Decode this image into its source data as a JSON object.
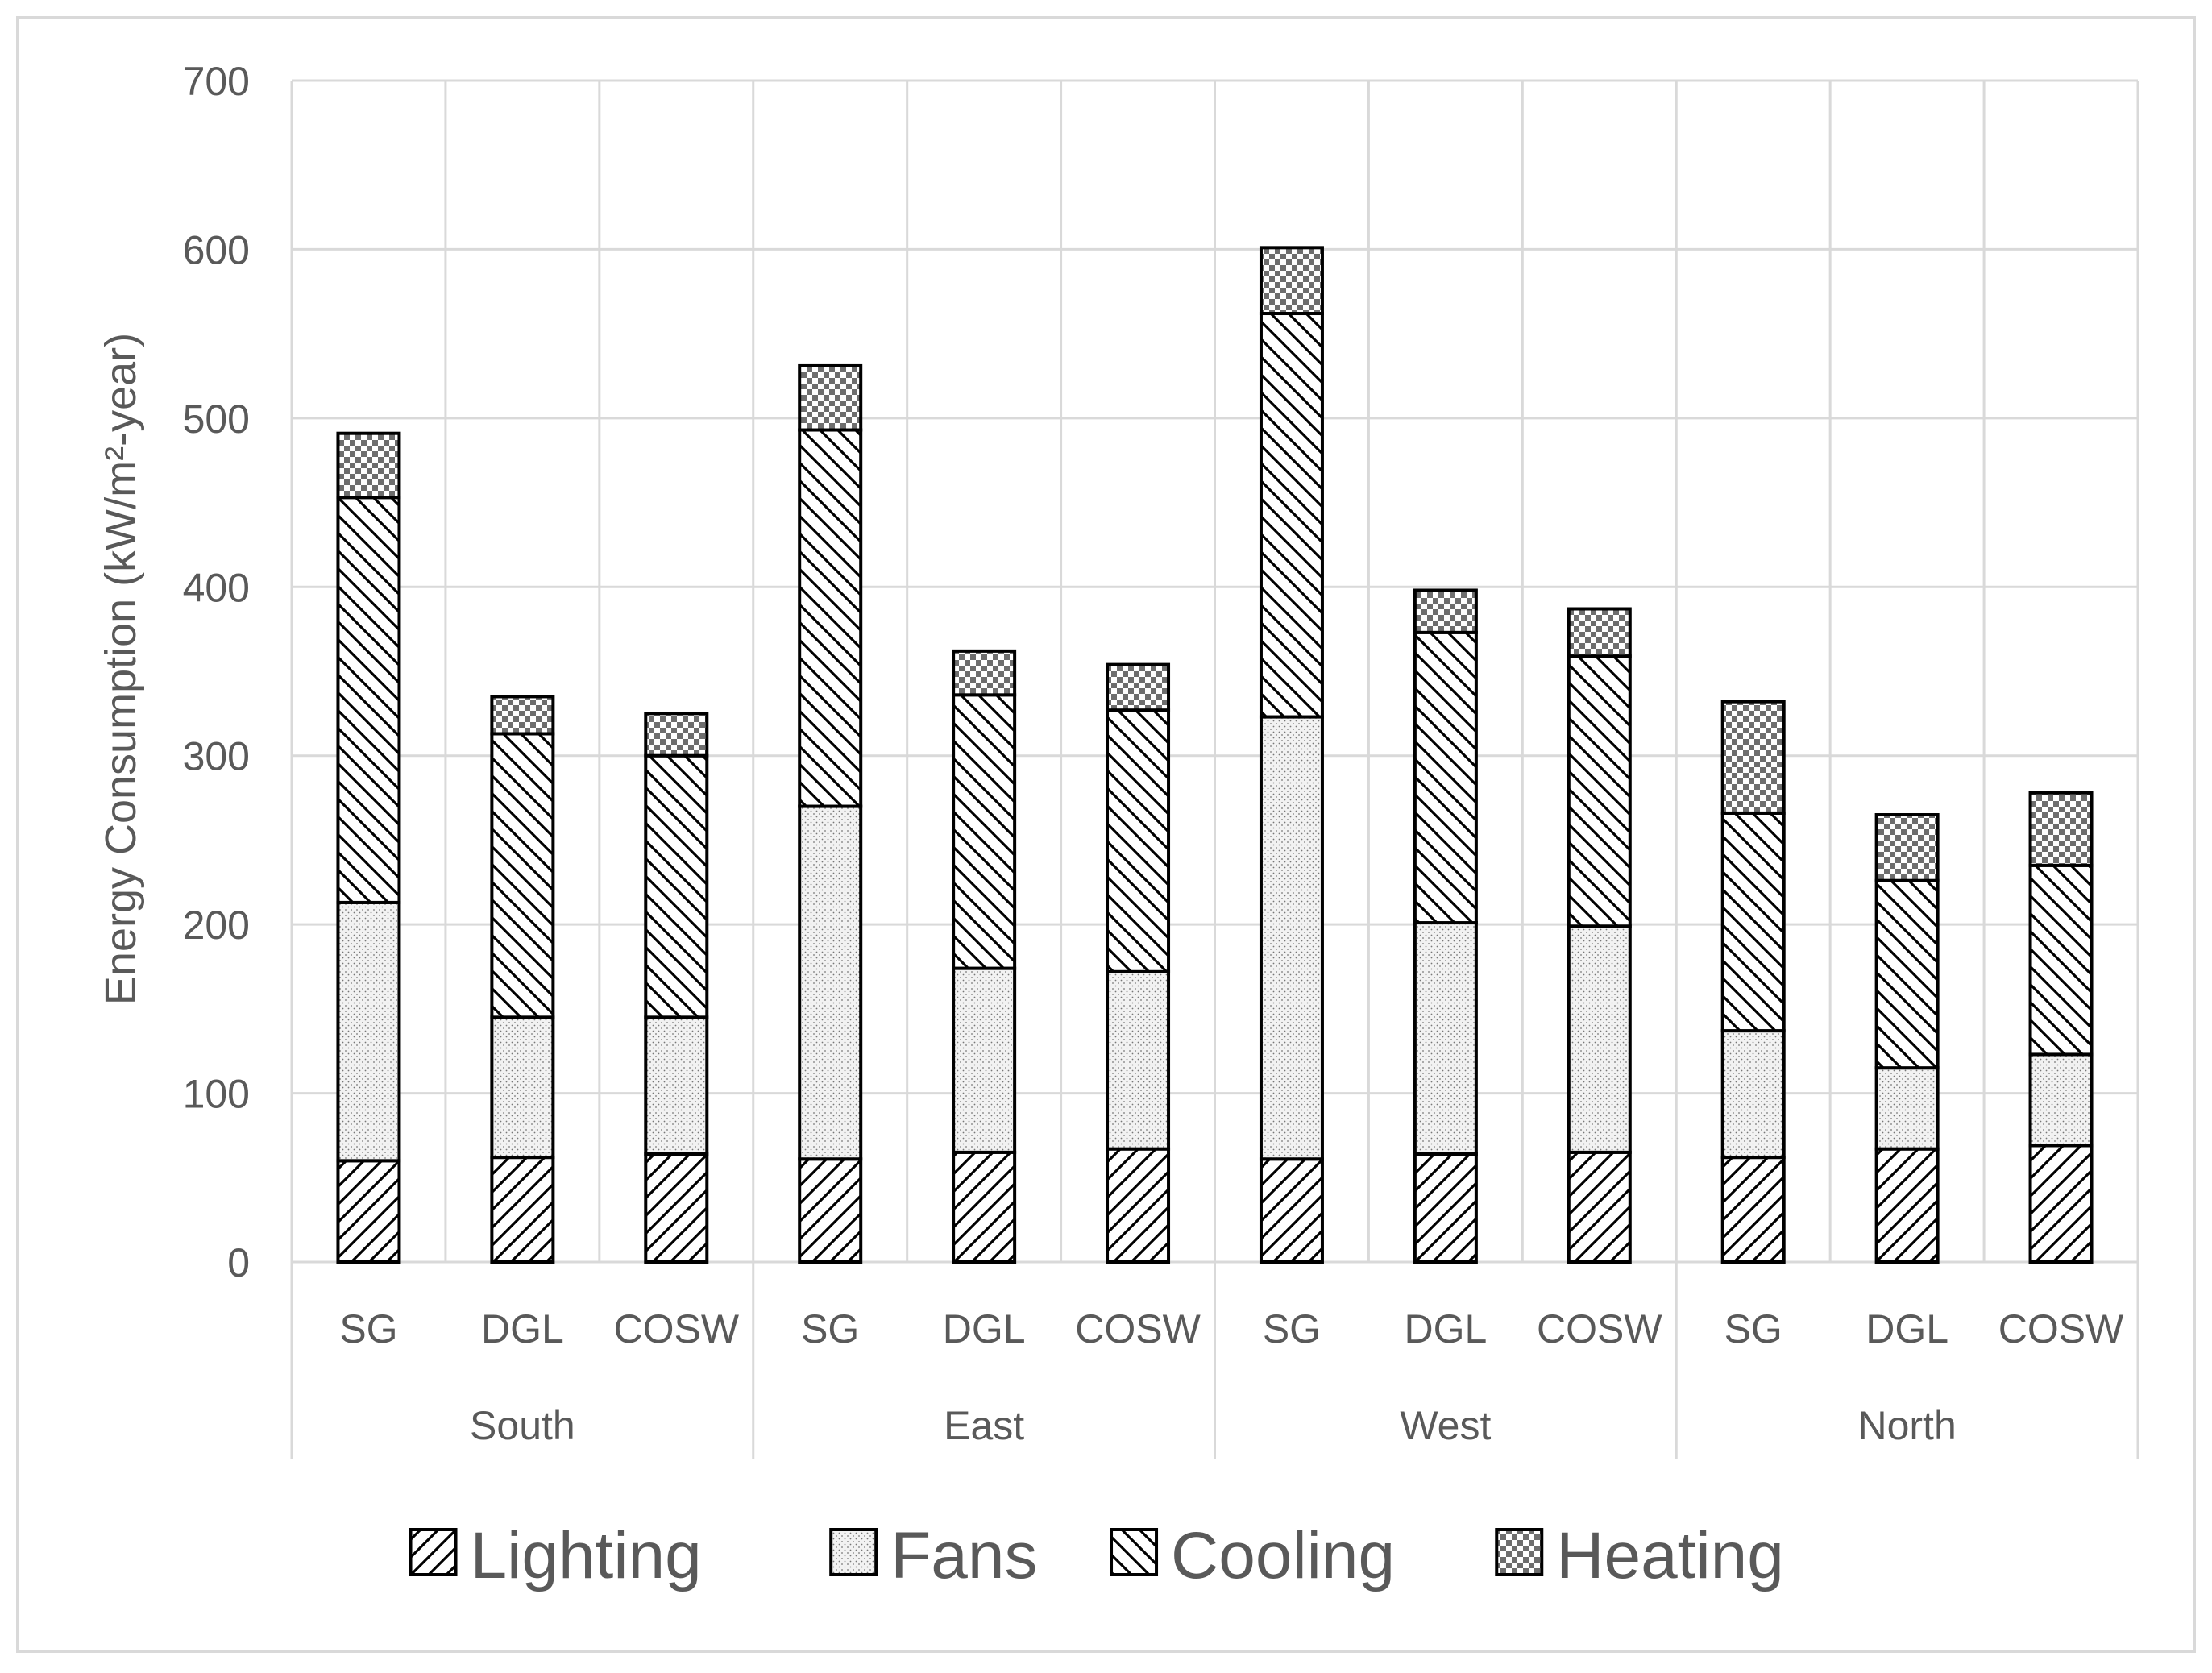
{
  "chart_data": {
    "type": "bar",
    "stacked": true,
    "title": "",
    "xlabel": "",
    "ylabel": "Energy Consumption (kW/m²-year)",
    "ylim": [
      0,
      700
    ],
    "yticks": [
      0,
      100,
      200,
      300,
      400,
      500,
      600,
      700
    ],
    "grid": true,
    "legend_position": "bottom",
    "groups": [
      {
        "label": "South",
        "categories": [
          "SG",
          "DGL",
          "COSW"
        ]
      },
      {
        "label": "East",
        "categories": [
          "SG",
          "DGL",
          "COSW"
        ]
      },
      {
        "label": "West",
        "categories": [
          "SG",
          "DGL",
          "COSW"
        ]
      },
      {
        "label": "North",
        "categories": [
          "SG",
          "DGL",
          "COSW"
        ]
      }
    ],
    "series": [
      {
        "name": "Lighting",
        "pattern": "diagonal-up",
        "values": [
          60,
          62,
          64,
          61,
          65,
          67,
          61,
          64,
          65,
          62,
          67,
          69
        ]
      },
      {
        "name": "Fans",
        "pattern": "dots",
        "values": [
          153,
          83,
          81,
          209,
          109,
          105,
          262,
          137,
          134,
          75,
          48,
          54
        ]
      },
      {
        "name": "Cooling",
        "pattern": "diagonal-down",
        "values": [
          240,
          168,
          155,
          223,
          162,
          155,
          239,
          172,
          160,
          129,
          111,
          112
        ]
      },
      {
        "name": "Heating",
        "pattern": "checker",
        "values": [
          38,
          22,
          25,
          38,
          26,
          27,
          39,
          25,
          28,
          66,
          39,
          43
        ]
      }
    ],
    "colors": {
      "axis_text": "#595959",
      "grid": "#d9d9d9",
      "bar_stroke": "#000000",
      "legend_text": "#595959"
    }
  }
}
